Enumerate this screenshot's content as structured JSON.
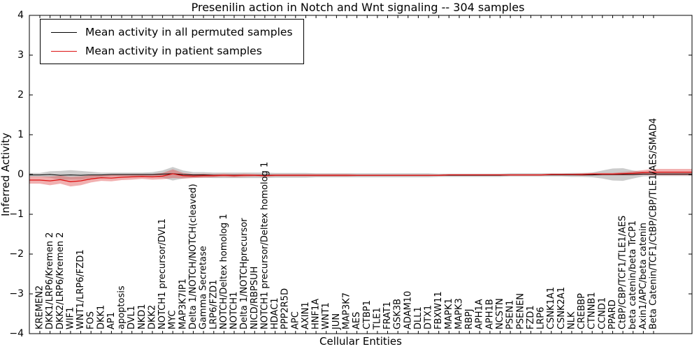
{
  "chart_data": {
    "type": "line",
    "title": "Presenilin action in Notch and Wnt signaling -- 304 samples",
    "xlabel": "Cellular Entities",
    "ylabel": "Inferred Activity",
    "ylim": [
      -4,
      4
    ],
    "ytick_values": [
      4,
      3,
      2,
      1,
      0,
      -1,
      -2,
      -3,
      -4
    ],
    "ytick_labels": [
      "4",
      "3",
      "2",
      "1",
      "0",
      "−1",
      "−2",
      "−3",
      "−4"
    ],
    "legend_position": "upper left",
    "grid": false,
    "categories": [
      "KREMEN2",
      "DKK1/LRP6/Kremen 2",
      "DKK2/LRP6/Kremen 2",
      "WIF1",
      "WNT1/LRP6/FZD1",
      "FOS",
      "DKK1",
      "AP1",
      "apoptosis",
      "DVL1",
      "NKD1",
      "DKK2",
      "NOTCH1 precursor/DVL1",
      "MYC",
      "MAP3K7IP1",
      "Delta 1/NOTCH/NOTCH(cleaved)",
      "Gamma Secretase",
      "LRP6/FZD1",
      "NOTCH/Deltex homolog 1",
      "NOTCH1",
      "Delta 1/NOTCHprecursor",
      "NICD/RBPSUH",
      "NOTCH1 precursor/Deltex homolog 1",
      "HDAC1",
      "PPP2R5D",
      "APC",
      "AXIN1",
      "HNF1A",
      "WNT1",
      "JUN",
      "MAP3K7",
      "AES",
      "CTBP1",
      "TLE1",
      "FRAT1",
      "GSK3B",
      "ADAM10",
      "DLL1",
      "DTX1",
      "FBXW11",
      "MAPK1",
      "MAPK3",
      "RBPJ",
      "APH1A",
      "APH1B",
      "NCSTN",
      "PSEN1",
      "PSENEN",
      "FZD1",
      "LRP6",
      "CSNK1A1",
      "CSNK2A1",
      "NLK",
      "CREBBP",
      "CTNNB1",
      "CCND1",
      "PPARD",
      "CtBP/CBP/TCF1/TLE1/AES",
      "beta catenin/beta TrCP1",
      "Axin1/APC/beta catenin",
      "Beta Catenin/TCF1/CtBP/CBP/TLE1/AES/SMAD4"
    ],
    "series": [
      {
        "id": "permuted",
        "name": "Mean activity in all permuted samples",
        "color": "#000000",
        "band_color": "#999999",
        "band_opacity": 0.5,
        "values": [
          -0.01,
          0,
          -0.02,
          -0.01,
          -0.02,
          -0.01,
          -0.01,
          0,
          0,
          0,
          0,
          0,
          0.01,
          0.02,
          0,
          -0.01,
          -0.01,
          -0.02,
          -0.02,
          -0.02,
          -0.02,
          -0.02,
          -0.02,
          -0.02,
          -0.02,
          -0.02,
          -0.02,
          -0.02,
          -0.02,
          -0.02,
          -0.02,
          -0.02,
          -0.02,
          -0.02,
          -0.02,
          -0.02,
          -0.02,
          -0.02,
          -0.02,
          -0.02,
          -0.02,
          -0.02,
          -0.02,
          -0.02,
          -0.02,
          -0.02,
          -0.01,
          -0.01,
          -0.01,
          -0.01,
          -0.01,
          -0.01,
          -0.01,
          -0.01,
          -0.01,
          0,
          0,
          0,
          0,
          0.01,
          0.01
        ],
        "band": [
          0.05,
          0.08,
          0.11,
          0.12,
          0.11,
          0.08,
          0.06,
          0.05,
          0.05,
          0.05,
          0.05,
          0.06,
          0.09,
          0.17,
          0.1,
          0.07,
          0.07,
          0.07,
          0.07,
          0.07,
          0.07,
          0.07,
          0.07,
          0.06,
          0.06,
          0.06,
          0.06,
          0.05,
          0.05,
          0.05,
          0.05,
          0.05,
          0.05,
          0.05,
          0.05,
          0.05,
          0.05,
          0.05,
          0.05,
          0.04,
          0.04,
          0.04,
          0.04,
          0.04,
          0.04,
          0.04,
          0.04,
          0.04,
          0.04,
          0.04,
          0.04,
          0.04,
          0.05,
          0.05,
          0.06,
          0.1,
          0.15,
          0.16,
          0.1,
          0.06,
          0.05
        ]
      },
      {
        "id": "patient",
        "name": "Mean activity in patient samples",
        "color": "#dd1111",
        "band_color": "#e05050",
        "band_opacity": 0.45,
        "values": [
          -0.14,
          -0.16,
          -0.13,
          -0.18,
          -0.16,
          -0.11,
          -0.08,
          -0.09,
          -0.07,
          -0.06,
          -0.05,
          -0.06,
          -0.04,
          0.02,
          -0.03,
          -0.04,
          -0.03,
          -0.03,
          -0.02,
          -0.03,
          -0.02,
          -0.02,
          -0.03,
          -0.02,
          -0.02,
          -0.02,
          -0.02,
          -0.02,
          -0.02,
          -0.02,
          -0.02,
          -0.02,
          -0.02,
          -0.02,
          -0.02,
          -0.02,
          -0.02,
          -0.02,
          -0.02,
          -0.02,
          -0.01,
          -0.01,
          -0.01,
          -0.01,
          -0.01,
          -0.01,
          -0.01,
          -0.01,
          -0.01,
          -0.01,
          0,
          0,
          0,
          0,
          0.01,
          0.01,
          0.01,
          0.02,
          0.03,
          0.05,
          0.06
        ],
        "band": [
          0.09,
          0.11,
          0.1,
          0.12,
          0.11,
          0.09,
          0.08,
          0.08,
          0.07,
          0.07,
          0.06,
          0.07,
          0.08,
          0.11,
          0.07,
          0.05,
          0.05,
          0.04,
          0.04,
          0.04,
          0.04,
          0.03,
          0.03,
          0.03,
          0.03,
          0.03,
          0.03,
          0.03,
          0.03,
          0.03,
          0.03,
          0.02,
          0.02,
          0.02,
          0.02,
          0.02,
          0.02,
          0.02,
          0.02,
          0.02,
          0.02,
          0.02,
          0.02,
          0.02,
          0.02,
          0.02,
          0.02,
          0.02,
          0.02,
          0.02,
          0.02,
          0.02,
          0.02,
          0.03,
          0.03,
          0.03,
          0.03,
          0.04,
          0.05,
          0.06,
          0.08
        ]
      }
    ]
  }
}
